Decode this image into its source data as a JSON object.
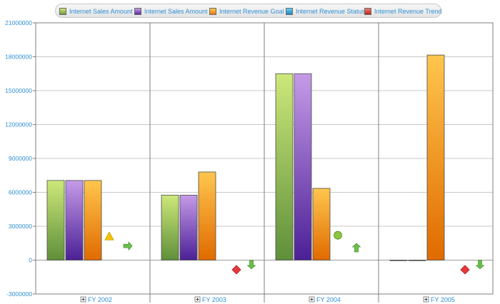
{
  "legend": {
    "items": [
      {
        "label": "Internet Sales Amount",
        "color": "#8cc152"
      },
      {
        "label": "Internet Sales Amount",
        "color": "#7b4fb3"
      },
      {
        "label": "Internet Revenue Goal",
        "color": "#f39c1f"
      },
      {
        "label": "Internet Revenue Status",
        "color": "#2fa8d8"
      },
      {
        "label": "Internet Revenue Trend",
        "color": "#d9302b"
      }
    ]
  },
  "chart_data": {
    "type": "bar",
    "categories": [
      "FY 2002",
      "FY 2003",
      "FY 2004",
      "FY 2005"
    ],
    "ylim": [
      -3000000,
      21000000
    ],
    "yticks": [
      -3000000,
      0,
      3000000,
      6000000,
      9000000,
      12000000,
      15000000,
      18000000,
      21000000
    ],
    "ytick_labels": [
      "-3000000",
      "0",
      "3000000",
      "6000000",
      "9000000",
      "12000000",
      "15000000",
      "18000000",
      "21000000"
    ],
    "grid": true,
    "legend_position": "top",
    "series": [
      {
        "name": "Internet Sales Amount",
        "colors": [
          "#cde87a",
          "#5f8f3a"
        ],
        "values": [
          7050000,
          5750000,
          16500000,
          0
        ]
      },
      {
        "name": "Internet Sales Amount",
        "colors": [
          "#c59be8",
          "#4b2096"
        ],
        "values": [
          7050000,
          5750000,
          16500000,
          0
        ]
      },
      {
        "name": "Internet Revenue Goal",
        "colors": [
          "#ffc64d",
          "#e06a00"
        ],
        "values": [
          7050000,
          7800000,
          6350000,
          18150000
        ]
      }
    ],
    "indicators": {
      "status": [
        "warning-triangle",
        "error-diamond",
        "ok-circle",
        "error-diamond"
      ],
      "trend": [
        "arrow-right",
        "arrow-down",
        "arrow-up",
        "arrow-down"
      ]
    }
  }
}
